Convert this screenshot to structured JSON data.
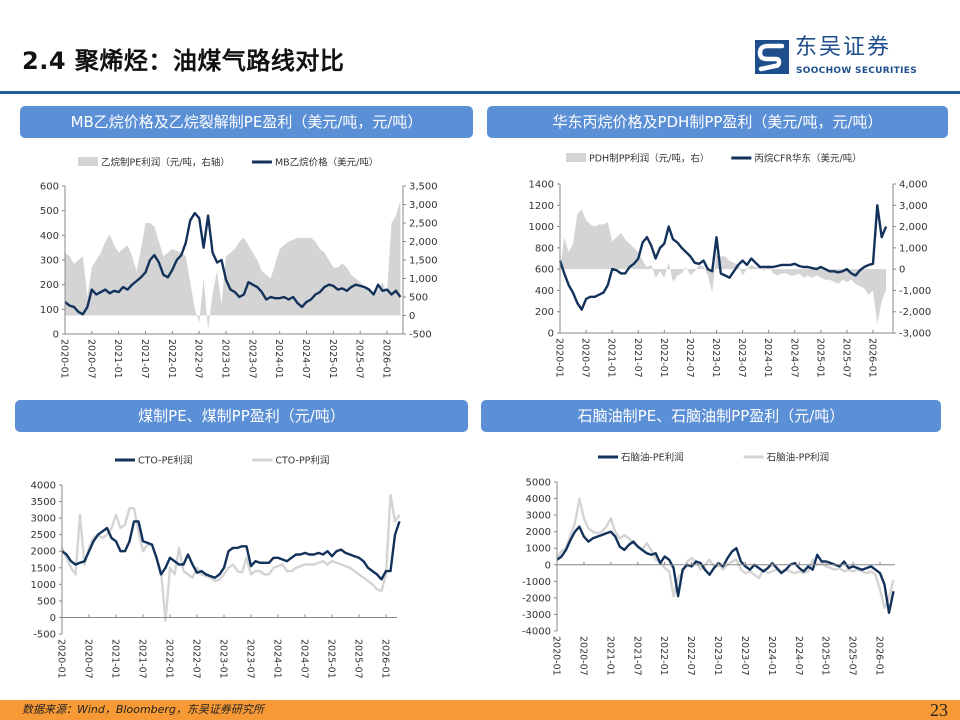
{
  "header": {
    "title": "2.4 聚烯烃：油煤气路线对比"
  },
  "logo": {
    "cn": "东吴证券",
    "en": "SOOCHOW SECURITIES"
  },
  "footer": {
    "source": "数据来源：Wind，Bloomberg，东吴证券研究所",
    "page": "23"
  },
  "colors": {
    "navy": "#13325b",
    "gray": "#d4d4d4",
    "panel": "#5b8fd6",
    "rule": "#1f5c99",
    "footer": "#f79a35"
  },
  "chart_data": [
    {
      "type": "line",
      "title": "MB乙烷价格及乙烷裂解制PE盈利（美元/吨，元/吨）",
      "x_start": "2020-01",
      "x_step": "month",
      "x_ticks": [
        "2020-01",
        "2020-07",
        "2021-01",
        "2021-07",
        "2022-01",
        "2022-07",
        "2023-01",
        "2023-07",
        "2024-01",
        "2024-07",
        "2025-01",
        "2025-07",
        "2026-01"
      ],
      "ylim": [
        0,
        600
      ],
      "yticks": [
        0,
        100,
        200,
        300,
        400,
        500,
        600
      ],
      "y2lim": [
        -500,
        3500
      ],
      "y2ticks": [
        "-500",
        "0",
        "500",
        "1,000",
        "1,500",
        "2,000",
        "2,500",
        "3,000",
        "3,500"
      ],
      "legend_position": "top",
      "series": [
        {
          "name": "乙烷制PE利润（元/吨，右轴）",
          "type": "area",
          "axis": "right",
          "color": "#d4d4d4",
          "values": [
            1700,
            1600,
            1400,
            1500,
            1600,
            500,
            1300,
            1500,
            1700,
            2000,
            2200,
            1900,
            1700,
            1800,
            1900,
            1600,
            1200,
            1800,
            2500,
            2500,
            2400,
            2000,
            1600,
            1700,
            1800,
            1750,
            1700,
            1600,
            900,
            200,
            -200,
            1000,
            -400,
            600,
            1200,
            300,
            1600,
            1700,
            1800,
            2000,
            2100,
            1900,
            1700,
            1500,
            1200,
            1100,
            1000,
            1400,
            1800,
            1900,
            2000,
            2050,
            2100,
            2100,
            2100,
            2100,
            2000,
            1800,
            1700,
            1500,
            1300,
            1300,
            1400,
            1300,
            1100,
            1000,
            900,
            800,
            700,
            600,
            700,
            900,
            600,
            2500,
            2700,
            3100
          ]
        },
        {
          "name": "MB乙烷价格（美元/吨）",
          "type": "line",
          "axis": "left",
          "color": "#13325b",
          "values": [
            130,
            115,
            110,
            90,
            80,
            110,
            180,
            160,
            170,
            180,
            165,
            175,
            170,
            190,
            180,
            200,
            215,
            230,
            250,
            300,
            320,
            290,
            240,
            230,
            260,
            300,
            320,
            370,
            460,
            490,
            470,
            350,
            480,
            330,
            290,
            300,
            220,
            180,
            170,
            150,
            160,
            210,
            200,
            190,
            170,
            140,
            150,
            145,
            145,
            150,
            140,
            150,
            125,
            110,
            130,
            140,
            160,
            170,
            190,
            200,
            195,
            180,
            185,
            175,
            190,
            200,
            195,
            190,
            180,
            160,
            200,
            175,
            180,
            160,
            175,
            150
          ]
        }
      ]
    },
    {
      "type": "line",
      "title": "华东丙烷价格及PDH制PP盈利（美元/吨，元/吨）",
      "x_start": "2020-01",
      "x_step": "month",
      "x_ticks": [
        "2020-01",
        "2020-07",
        "2021-01",
        "2021-07",
        "2022-01",
        "2022-07",
        "2023-01",
        "2023-07",
        "2024-01",
        "2024-07",
        "2025-01",
        "2025-07",
        "2026-01"
      ],
      "ylim": [
        0,
        1400
      ],
      "yticks": [
        0,
        200,
        400,
        600,
        800,
        1000,
        1200,
        1400
      ],
      "y2lim": [
        -3000,
        4000
      ],
      "y2ticks": [
        "-3,000",
        "-2,000",
        "-1,000",
        "0",
        "1,000",
        "2,000",
        "3,000",
        "4,000"
      ],
      "legend_position": "top",
      "series": [
        {
          "name": "PDH制PP利润（元/吨，右）",
          "type": "area",
          "axis": "right",
          "color": "#d4d4d4",
          "values": [
            0,
            1500,
            800,
            1200,
            2600,
            2800,
            2300,
            2100,
            2000,
            2100,
            2100,
            2200,
            1300,
            1500,
            1700,
            1400,
            1200,
            1000,
            800,
            400,
            100,
            200,
            -400,
            -100,
            -400,
            300,
            -600,
            -300,
            -200,
            100,
            -300,
            -100,
            200,
            100,
            -300,
            -1100,
            800,
            600,
            600,
            400,
            300,
            200,
            -300,
            0,
            200,
            100,
            100,
            -100,
            200,
            -200,
            -300,
            -200,
            -200,
            -300,
            -300,
            -200,
            -400,
            -300,
            -400,
            -300,
            -400,
            -500,
            -500,
            -600,
            -700,
            -500,
            -600,
            -500,
            -700,
            -800,
            -900,
            -1200,
            -1000,
            -2600,
            -1500,
            -1000
          ]
        },
        {
          "name": "丙烷CFR华东（美元/吨）",
          "type": "line",
          "axis": "left",
          "color": "#13325b",
          "values": [
            680,
            560,
            450,
            380,
            280,
            220,
            320,
            340,
            340,
            360,
            380,
            450,
            600,
            590,
            560,
            560,
            620,
            650,
            700,
            850,
            900,
            820,
            700,
            800,
            840,
            1000,
            880,
            850,
            800,
            760,
            720,
            660,
            650,
            680,
            600,
            580,
            900,
            560,
            540,
            520,
            580,
            640,
            680,
            640,
            700,
            660,
            620,
            620,
            620,
            620,
            630,
            640,
            640,
            640,
            650,
            630,
            620,
            620,
            610,
            600,
            620,
            600,
            580,
            580,
            570,
            580,
            600,
            560,
            540,
            590,
            620,
            640,
            650,
            1200,
            900,
            1000
          ]
        }
      ]
    },
    {
      "type": "line",
      "title": "煤制PE、煤制PP盈利（元/吨）",
      "x_start": "2020-01",
      "x_step": "month",
      "x_ticks": [
        "2020-01",
        "2020-07",
        "2021-01",
        "2021-07",
        "2022-01",
        "2022-07",
        "2023-01",
        "2023-07",
        "2024-01",
        "2024-07",
        "2025-01",
        "2025-07",
        "2026-01"
      ],
      "ylim": [
        -500,
        4000
      ],
      "yticks": [
        -500,
        0,
        500,
        1000,
        1500,
        2000,
        2500,
        3000,
        3500,
        4000
      ],
      "legend_position": "top",
      "series": [
        {
          "name": "CTO-PP利润",
          "type": "line",
          "color": "#d4d4d4",
          "values": [
            2100,
            1800,
            1500,
            1300,
            3100,
            1600,
            2100,
            2400,
            2500,
            2400,
            2500,
            2700,
            3100,
            2700,
            2800,
            3300,
            3300,
            2600,
            2000,
            2200,
            2200,
            1800,
            1400,
            -100,
            1500,
            1300,
            2100,
            1400,
            1300,
            1200,
            1500,
            1300,
            1250,
            1200,
            1100,
            1150,
            1300,
            1500,
            1600,
            1400,
            1350,
            1800,
            1300,
            1400,
            1400,
            1300,
            1300,
            1500,
            1550,
            1600,
            1400,
            1400,
            1500,
            1550,
            1600,
            1600,
            1600,
            1650,
            1700,
            1600,
            1700,
            1650,
            1600,
            1550,
            1500,
            1400,
            1300,
            1200,
            1100,
            1000,
            850,
            800,
            1300,
            3700,
            2900,
            3100
          ]
        },
        {
          "name": "CTO-PE利润",
          "type": "line",
          "color": "#13325b",
          "values": [
            2000,
            1900,
            1700,
            1600,
            1650,
            1700,
            2000,
            2300,
            2500,
            2600,
            2700,
            2400,
            2300,
            2000,
            2000,
            2300,
            2900,
            2900,
            2300,
            2250,
            2200,
            1800,
            1300,
            1500,
            1800,
            1700,
            1600,
            1600,
            1900,
            1600,
            1350,
            1400,
            1300,
            1250,
            1200,
            1300,
            1500,
            2000,
            2100,
            2100,
            2150,
            2150,
            1550,
            1700,
            1650,
            1650,
            1650,
            1800,
            1800,
            1750,
            1700,
            1800,
            1900,
            1900,
            1950,
            1900,
            1900,
            1950,
            1900,
            2000,
            1850,
            2000,
            2050,
            1950,
            1900,
            1850,
            1800,
            1700,
            1500,
            1400,
            1300,
            1150,
            1400,
            1400,
            2500,
            2900
          ]
        }
      ]
    },
    {
      "type": "line",
      "title": "石脑油制PE、石脑油制PP盈利（元/吨）",
      "x_start": "2020-01",
      "x_step": "month",
      "x_ticks": [
        "2020-01",
        "2020-07",
        "2021-01",
        "2021-07",
        "2022-01",
        "2022-07",
        "2023-01",
        "2023-07",
        "2024-01",
        "2024-07",
        "2025-01",
        "2025-07",
        "2026-01"
      ],
      "ylim": [
        -4000,
        5000
      ],
      "yticks": [
        -4000,
        -3000,
        -2000,
        -1000,
        0,
        1000,
        2000,
        3000,
        4000,
        5000
      ],
      "legend_position": "top",
      "series": [
        {
          "name": "石脑油-PP利润",
          "type": "line",
          "color": "#d4d4d4",
          "values": [
            400,
            800,
            1000,
            1800,
            2500,
            4000,
            2800,
            2200,
            2000,
            1900,
            2000,
            2300,
            2800,
            2000,
            1600,
            1800,
            1600,
            1300,
            1100,
            900,
            1300,
            900,
            300,
            200,
            -200,
            -400,
            -1900,
            -800,
            -500,
            200,
            400,
            200,
            -300,
            0,
            300,
            -100,
            0,
            -300,
            0,
            200,
            300,
            -300,
            -500,
            -400,
            -600,
            -800,
            -300,
            -500,
            -400,
            -300,
            -400,
            -300,
            -400,
            -500,
            -400,
            -500,
            -400,
            300,
            0,
            100,
            -100,
            -200,
            -300,
            -200,
            -400,
            -300,
            -400,
            -300,
            -400,
            -500,
            -400,
            -600,
            -1500,
            -2600,
            -2000,
            -900
          ]
        },
        {
          "name": "石脑油-PE利润",
          "type": "line",
          "color": "#13325b",
          "values": [
            300,
            500,
            900,
            1500,
            2000,
            2300,
            1700,
            1400,
            1600,
            1700,
            1800,
            1900,
            2000,
            1700,
            1100,
            900,
            1200,
            1400,
            1100,
            900,
            700,
            600,
            700,
            100,
            500,
            300,
            -200,
            -1900,
            -300,
            0,
            -100,
            200,
            100,
            -300,
            -600,
            -200,
            100,
            -100,
            400,
            800,
            1000,
            200,
            -100,
            -300,
            0,
            -200,
            -400,
            -200,
            100,
            -200,
            -500,
            -300,
            0,
            100,
            -200,
            -400,
            -100,
            -300,
            600,
            200,
            200,
            100,
            0,
            -100,
            200,
            -200,
            -100,
            -200,
            -300,
            -200,
            -100,
            -300,
            -500,
            -1200,
            -2900,
            -1600
          ]
        }
      ]
    }
  ]
}
